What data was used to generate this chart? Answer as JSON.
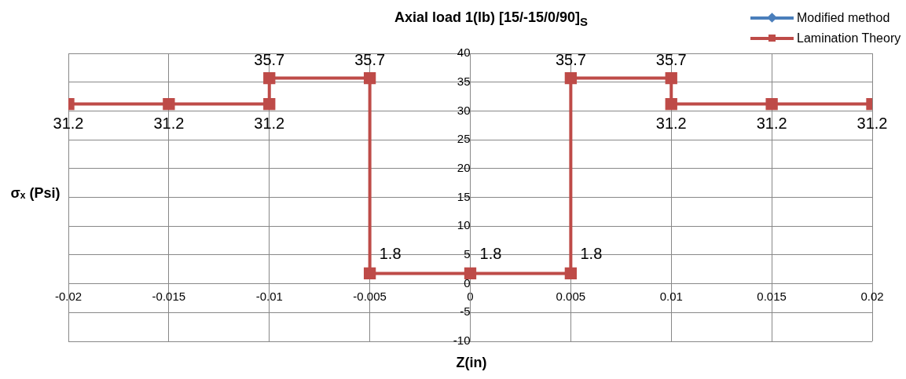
{
  "chart_data": {
    "type": "line",
    "title": "Axial load 1(lb) [15/-15/0/90]$_{S}$",
    "xlabel": "Z(in)",
    "ylabel": "σₓ (Psi)",
    "xlim": [
      -0.02,
      0.02
    ],
    "xticks": [
      -0.02,
      -0.015,
      -0.01,
      -0.005,
      0,
      0.005,
      0.01,
      0.015,
      0.02
    ],
    "x": [
      -0.02,
      -0.015,
      -0.01,
      -0.01,
      -0.005,
      -0.005,
      0,
      0.005,
      0.005,
      0.01,
      0.01,
      0.015,
      0.02
    ],
    "ylim": [
      -10,
      40
    ],
    "yticks": [
      -10,
      -5,
      0,
      5,
      10,
      15,
      20,
      25,
      30,
      35,
      40
    ],
    "grid": true,
    "legend": "top right",
    "data_labels": true,
    "line_style": "solid",
    "series": [
      {
        "name": "Modified method",
        "color": "#4a7ebb",
        "marker": "diamond",
        "values": [
          null,
          null,
          null,
          null,
          null,
          null,
          null,
          null,
          null,
          null,
          null,
          null,
          null
        ]
      },
      {
        "name": "Lamination Theory",
        "color": "#be4b48",
        "marker": "square",
        "values": [
          31.2,
          31.2,
          31.2,
          35.7,
          35.7,
          1.8,
          1.8,
          1.8,
          35.7,
          35.7,
          31.2,
          31.2,
          31.2
        ]
      }
    ]
  }
}
